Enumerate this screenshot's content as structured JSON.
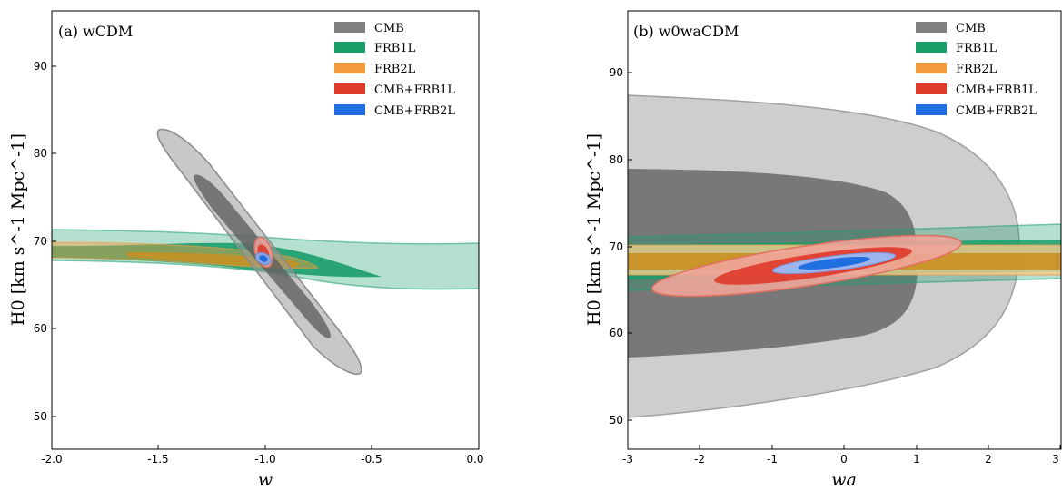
{
  "legend_colors": {
    "CMB": "#808080",
    "FRB1_L": "#1a9e6a",
    "FRB2_L": "#f39c3d",
    "CMB_FRB1_L": "#e03a2a",
    "CMB_FRB2_L": "#1f6fe0"
  },
  "chart_data": [
    {
      "type": "contour",
      "panel_label": "(a) wCDM",
      "xlabel": "w",
      "ylabel": "H0 [km s^-1 Mpc^-1]",
      "xlim": [
        -2.0,
        0.0
      ],
      "ylim": [
        46,
        96
      ],
      "xticks": [
        "-2.0",
        "-1.5",
        "-1.0",
        "-0.5",
        "0.0"
      ],
      "yticks": [
        "50",
        "60",
        "70",
        "80",
        "90"
      ],
      "legend_position": "top-right",
      "legend": [
        "CMB",
        "FRB1L",
        "FRB2L",
        "CMB+FRB1L",
        "CMB+FRB2L"
      ],
      "contours": [
        {
          "series": "CMB",
          "level": "2sigma",
          "center": [
            -1.03,
            68.8
          ],
          "axis_end": [
            -0.56,
            55.0
          ],
          "half_width_w": 0.05
        },
        {
          "series": "CMB",
          "level": "1sigma",
          "center": [
            -1.03,
            68.2
          ],
          "axis_end": [
            -0.71,
            59.0
          ],
          "half_width_w": 0.03
        },
        {
          "series": "FRB1L",
          "level": "2sigma",
          "x_range": [
            -2.0,
            0.0
          ],
          "h0_band": [
            64.7,
            71.2
          ]
        },
        {
          "series": "FRB1L",
          "level": "1sigma",
          "x_range": [
            -2.0,
            -0.55
          ],
          "h0_band": [
            65.8,
            70.0
          ]
        },
        {
          "series": "FRB2L",
          "level": "2sigma",
          "x_range": [
            -2.0,
            -0.75
          ],
          "h0_band": [
            67.0,
            70.0
          ]
        },
        {
          "series": "FRB2L",
          "level": "1sigma",
          "x_range": [
            -1.6,
            -0.85
          ],
          "h0_band": [
            67.8,
            69.3
          ]
        },
        {
          "series": "CMB+FRB1L",
          "level": "2sigma",
          "center": [
            -1.0,
            68.0
          ],
          "half_extent": [
            0.09,
            1.6
          ]
        },
        {
          "series": "CMB+FRB1L",
          "level": "1sigma",
          "center": [
            -1.0,
            68.0
          ],
          "half_extent": [
            0.06,
            1.0
          ]
        },
        {
          "series": "CMB+FRB2L",
          "level": "2sigma",
          "center": [
            -1.0,
            67.9
          ],
          "half_extent": [
            0.05,
            0.9
          ]
        },
        {
          "series": "CMB+FRB2L",
          "level": "1sigma",
          "center": [
            -1.0,
            67.9
          ],
          "half_extent": [
            0.03,
            0.5
          ]
        }
      ]
    },
    {
      "type": "contour",
      "panel_label": "(b) w0waCDM",
      "xlabel": "wa",
      "ylabel": "H0 [km s^-1 Mpc^-1]",
      "xlim": [
        -3,
        3
      ],
      "ylim": [
        46.5,
        97
      ],
      "xticks": [
        "-3",
        "-2",
        "-1",
        "0",
        "1",
        "2",
        "3"
      ],
      "yticks": [
        "50",
        "60",
        "70",
        "80",
        "90"
      ],
      "legend_position": "top-right",
      "legend": [
        "CMB",
        "FRB1L",
        "FRB2L",
        "CMB+FRB1L",
        "CMB+FRB2L"
      ],
      "contours": [
        {
          "series": "CMB",
          "level": "2sigma",
          "wa_range": [
            -3,
            2.45
          ],
          "h0_range": [
            50.2,
            87.3
          ]
        },
        {
          "series": "CMB",
          "level": "1sigma",
          "wa_range": [
            -3,
            1.0
          ],
          "h0_range": [
            57.2,
            78.8
          ]
        },
        {
          "series": "FRB1L",
          "level": "2sigma",
          "wa_range": [
            -3,
            3
          ],
          "h0_left": [
            65.0,
            71.0
          ],
          "h0_right": [
            66.0,
            72.4
          ]
        },
        {
          "series": "FRB1L",
          "level": "1sigma",
          "wa_range": [
            -3,
            3
          ],
          "h0_left": [
            66.3,
            70.1
          ],
          "h0_right": [
            67.0,
            71.0
          ]
        },
        {
          "series": "FRB2L",
          "level": "2sigma",
          "wa_range": [
            -3,
            3
          ],
          "h0_band": [
            66.8,
            70.3
          ]
        },
        {
          "series": "FRB2L",
          "level": "1sigma",
          "wa_range": [
            -3,
            3
          ],
          "h0_band": [
            67.4,
            69.4
          ]
        },
        {
          "series": "CMB+FRB1L",
          "level": "2sigma",
          "wa_range": [
            -2.7,
            1.6
          ],
          "h0_left": 64.4,
          "h0_right": 71.0
        },
        {
          "series": "CMB+FRB1L",
          "level": "1sigma",
          "wa_range": [
            -1.8,
            0.95
          ],
          "h0_left": 65.6,
          "h0_right": 69.7
        },
        {
          "series": "CMB+FRB2L",
          "level": "2sigma",
          "wa_range": [
            -1.0,
            0.7
          ],
          "h0_left": 66.6,
          "h0_right": 69.2
        },
        {
          "series": "CMB+FRB2L",
          "level": "1sigma",
          "wa_range": [
            -0.55,
            0.45
          ],
          "h0_left": 67.2,
          "h0_right": 68.6
        }
      ]
    }
  ]
}
